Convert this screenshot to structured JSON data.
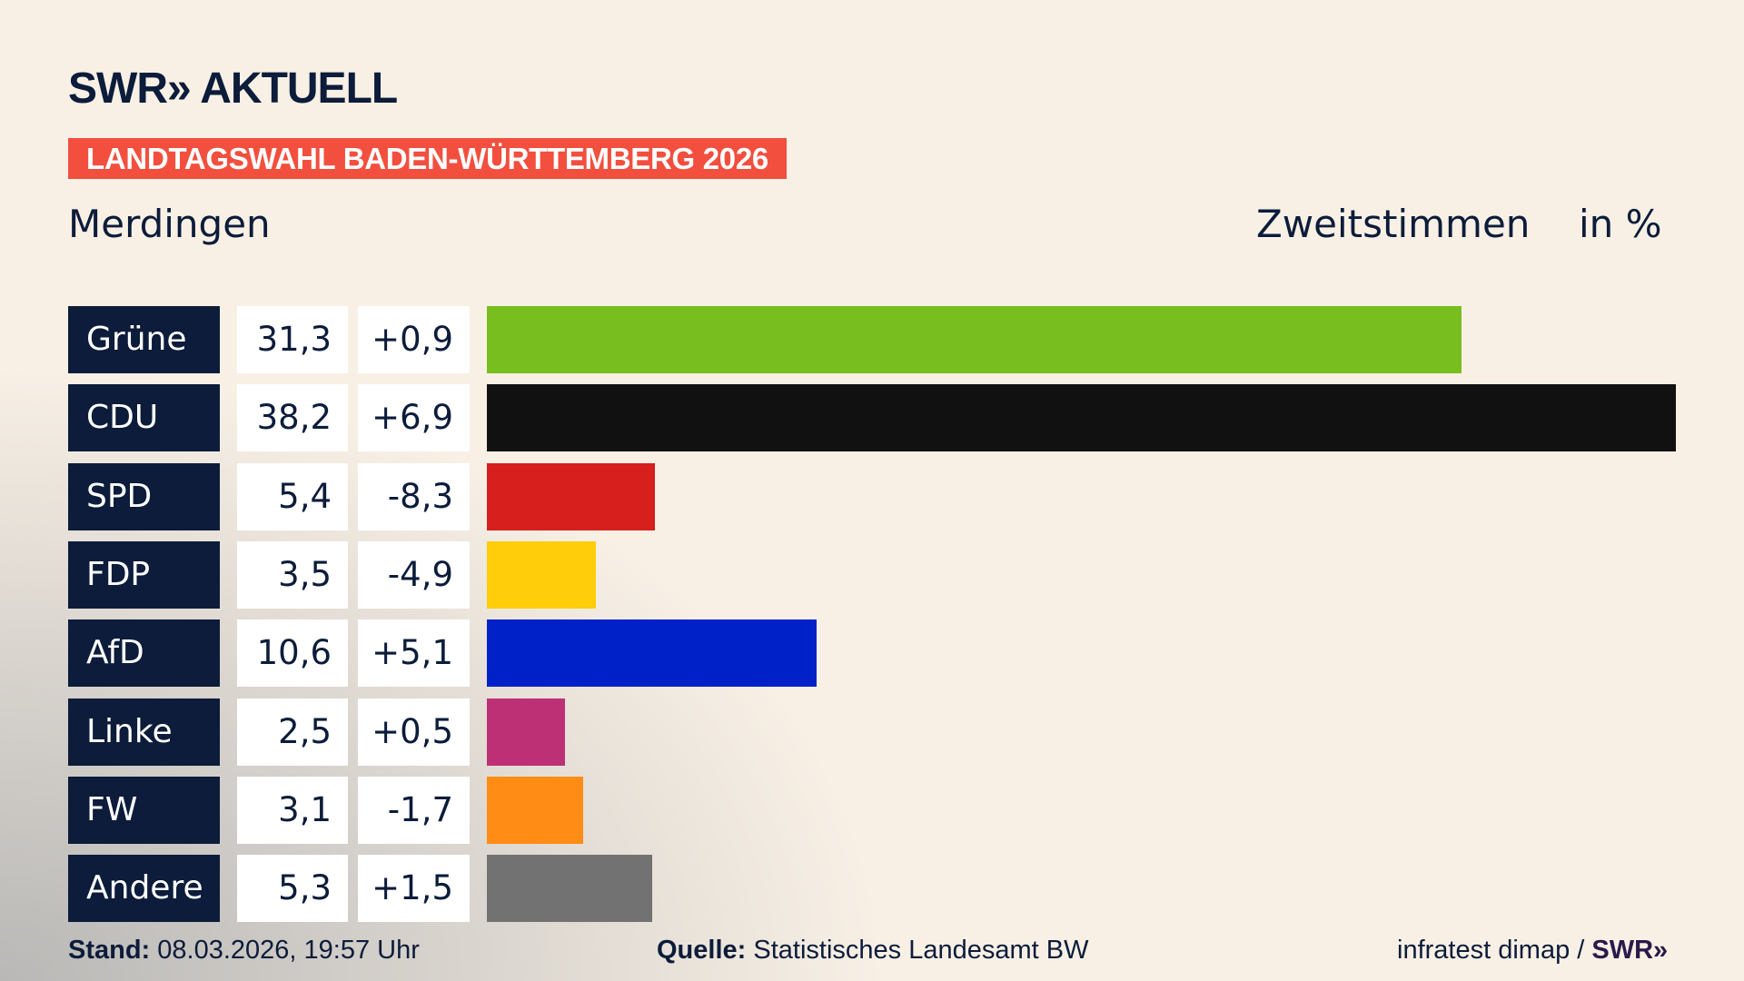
{
  "brand": {
    "logo": "SWR» AKTUELL"
  },
  "banner": "LANDTAGSWAHL BADEN-WÜRTTEMBERG 2026",
  "place": "Merdingen",
  "header": {
    "vote_type": "Zweitstimmen",
    "unit": "in %"
  },
  "chart_data": {
    "type": "bar",
    "orientation": "horizontal",
    "categories": [
      "Grüne",
      "CDU",
      "SPD",
      "FDP",
      "AfD",
      "Linke",
      "FW",
      "Andere"
    ],
    "values": [
      31.3,
      38.2,
      5.4,
      3.5,
      10.6,
      2.5,
      3.1,
      5.3
    ],
    "value_labels": [
      "31,3",
      "38,2",
      "5,4",
      "3,5",
      "10,6",
      "2,5",
      "3,1",
      "5,3"
    ],
    "change_labels": [
      "+0,9",
      "+6,9",
      "-8,3",
      "-4,9",
      "+5,1",
      "+0,5",
      "-1,7",
      "+1,5"
    ],
    "colors": [
      "#78be1e",
      "#111111",
      "#d71f1d",
      "#ffcd0a",
      "#0021c8",
      "#be3075",
      "#ff8c14",
      "#727272"
    ],
    "grid": false,
    "legend": "none"
  },
  "footer": {
    "stand_label": "Stand:",
    "stand_value": "08.03.2026, 19:57 Uhr",
    "source_label": "Quelle:",
    "source_value": "Statistisches Landesamt BW",
    "credit": "infratest dimap /",
    "credit_logo": "SWR»"
  }
}
